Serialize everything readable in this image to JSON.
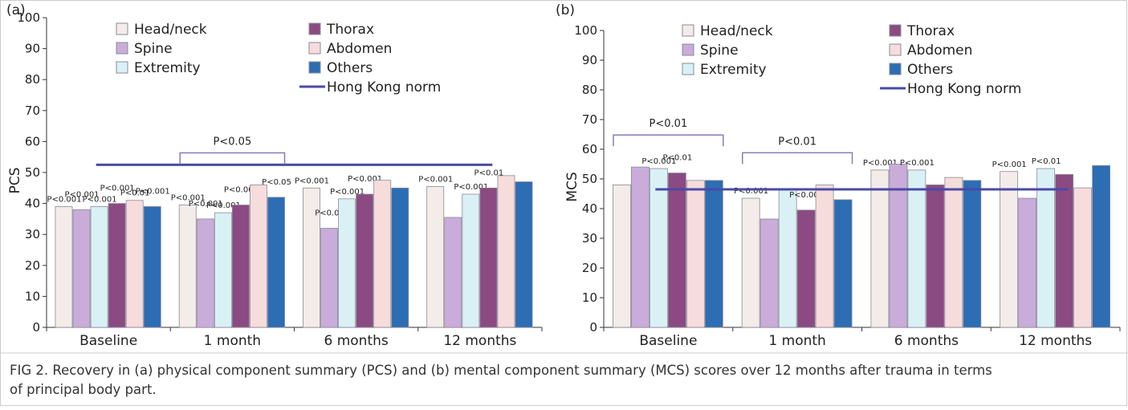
{
  "chart_data": [
    {
      "type": "bar",
      "panel_label": "(a)",
      "ylabel": "PCS",
      "categories": [
        "Baseline",
        "1 month",
        "6 months",
        "12 months"
      ],
      "series": [
        {
          "name": "Head/neck",
          "color": "#f4ece8",
          "values": [
            39,
            39.5,
            45,
            45.5
          ],
          "annotations": [
            "P<0.001",
            "P<0.001",
            "P<0.001",
            "P<0.001"
          ]
        },
        {
          "name": "Spine",
          "color": "#c9acd9",
          "values": [
            38,
            35,
            32,
            35.5
          ],
          "annotations": [
            "P<0.001",
            "P<0.001",
            "P<0.05",
            null
          ]
        },
        {
          "name": "Extremity",
          "color": "#d9f1f5",
          "values": [
            39,
            37,
            41.5,
            43
          ],
          "annotations": [
            "P<0.001",
            "P<0.001",
            "P<0.001",
            "P<0.001"
          ]
        },
        {
          "name": "Thorax",
          "color": "#8b4a82",
          "values": [
            40,
            39.5,
            43,
            45
          ],
          "annotations": [
            "P<0.001",
            "P<0.001",
            "P<0.001",
            "P<0.01"
          ]
        },
        {
          "name": "Abdomen",
          "color": "#f7dcdc",
          "values": [
            41,
            46,
            47.5,
            49
          ],
          "annotations": [
            "P<0.01",
            null,
            null,
            null
          ]
        },
        {
          "name": "Others",
          "color": "#2c6db3",
          "values": [
            39,
            42,
            45,
            47
          ],
          "annotations": [
            "P<0.001",
            "P<0.05",
            null,
            null
          ]
        }
      ],
      "reference_line": {
        "name": "Hong Kong norm",
        "value": 52.5,
        "color": "#4a4aa8"
      },
      "brackets": [
        {
          "label": "P<0.05",
          "category": "1 month"
        }
      ],
      "ylim": [
        0,
        100
      ],
      "yticks": [
        0,
        10,
        20,
        30,
        40,
        50,
        60,
        70,
        80,
        90,
        100
      ]
    },
    {
      "type": "bar",
      "panel_label": "(b)",
      "ylabel": "MCS",
      "categories": [
        "Baseline",
        "1 month",
        "6 months",
        "12 months"
      ],
      "series": [
        {
          "name": "Head/neck",
          "color": "#f4ece8",
          "values": [
            48,
            43.5,
            53,
            52.5
          ],
          "annotations": [
            null,
            "P<0.001",
            "P<0.001",
            "P<0.001"
          ]
        },
        {
          "name": "Spine",
          "color": "#c9acd9",
          "values": [
            54,
            36.5,
            55,
            43.5
          ],
          "annotations": [
            null,
            null,
            null,
            null
          ]
        },
        {
          "name": "Extremity",
          "color": "#d9f1f5",
          "values": [
            53.5,
            46.5,
            53,
            53.5
          ],
          "annotations": [
            "P<0.001",
            null,
            "P<0.001",
            "P<0.01"
          ]
        },
        {
          "name": "Thorax",
          "color": "#8b4a82",
          "values": [
            52,
            39.5,
            48,
            51.5
          ],
          "annotations": [
            "P<0.01",
            "P<0.001",
            null,
            null
          ]
        },
        {
          "name": "Abdomen",
          "color": "#f7dcdc",
          "values": [
            49.5,
            48,
            50.5,
            47
          ],
          "annotations": [
            null,
            null,
            null,
            null
          ]
        },
        {
          "name": "Others",
          "color": "#2c6db3",
          "values": [
            49.5,
            43,
            49.5,
            54.5
          ],
          "annotations": [
            null,
            null,
            null,
            null
          ]
        }
      ],
      "reference_line": {
        "name": "Hong Kong norm",
        "value": 46.5,
        "color": "#4a4aa8"
      },
      "brackets": [
        {
          "label": "P<0.01",
          "category": "Baseline"
        },
        {
          "label": "P<0.01",
          "category": "1 month"
        }
      ],
      "ylim": [
        0,
        100
      ],
      "yticks": [
        0,
        10,
        20,
        30,
        40,
        50,
        60,
        70,
        80,
        90,
        100
      ]
    }
  ],
  "caption": [
    "FIG 2.  Recovery in (a) physical component summary (PCS) and (b) mental component summary (MCS) scores over 12 months after trauma in terms",
    "of principal body part."
  ]
}
